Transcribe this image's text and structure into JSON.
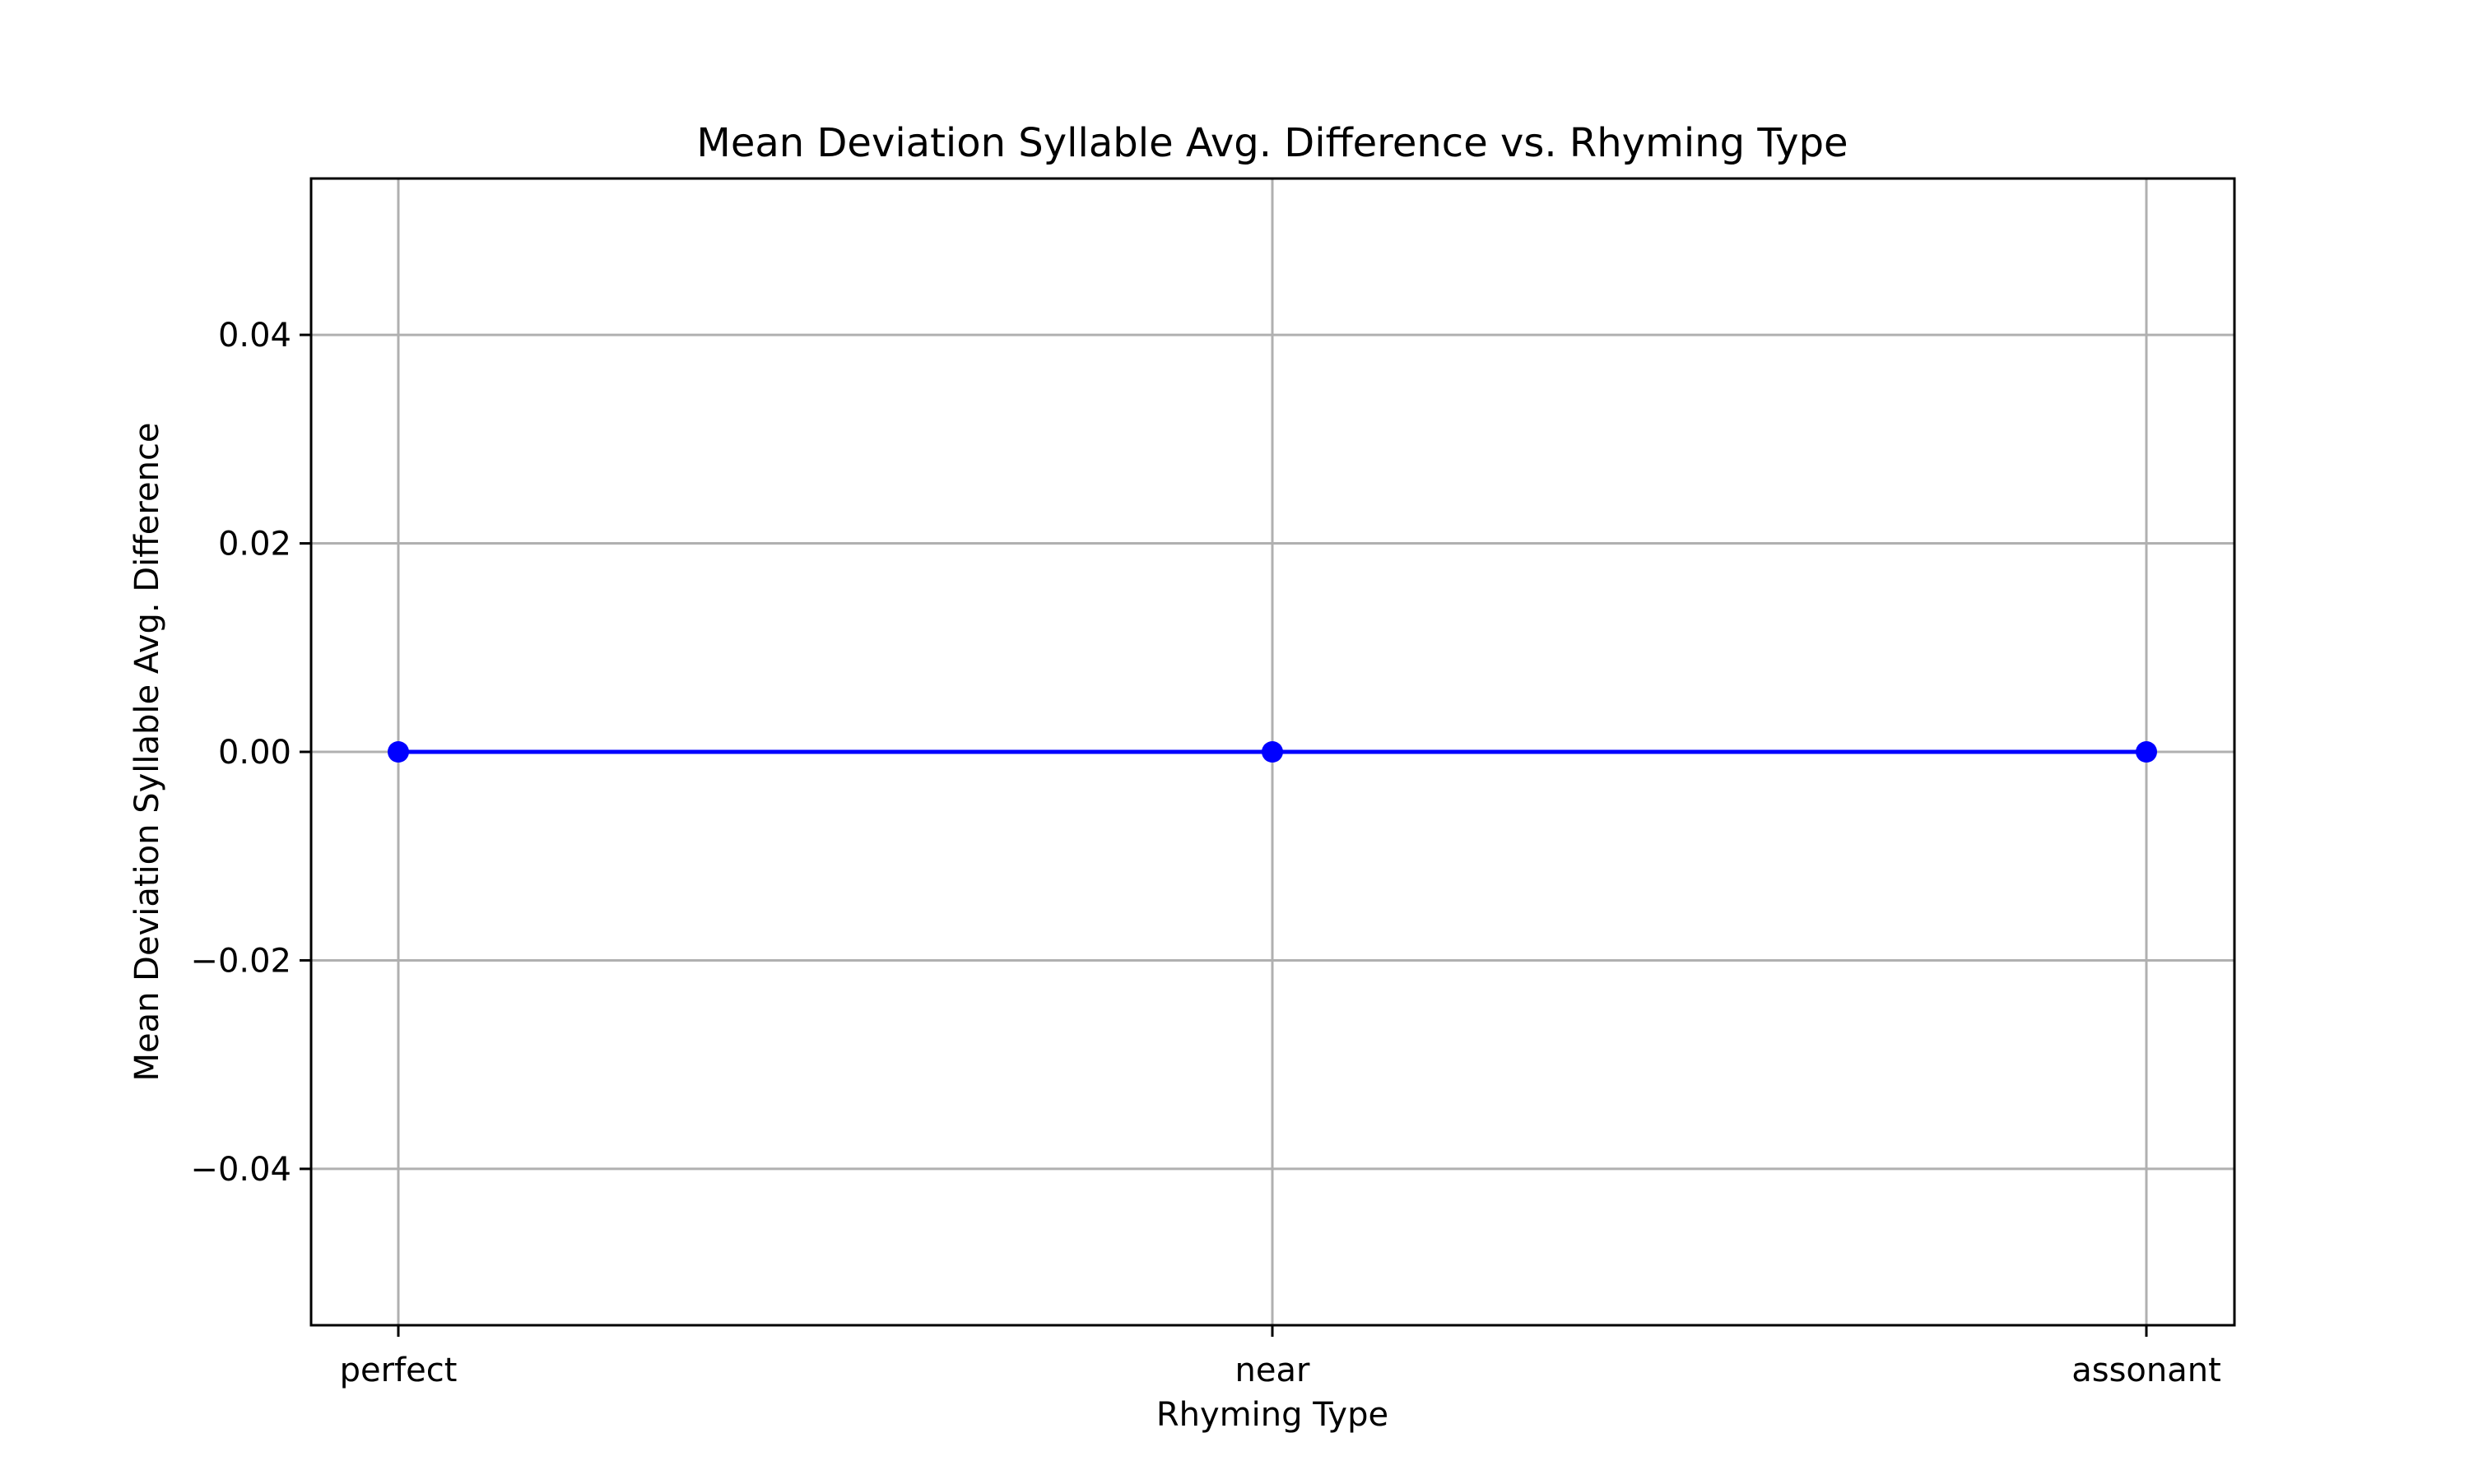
{
  "chart_data": {
    "type": "line",
    "title": "Mean Deviation Syllable Avg. Difference vs. Rhyming Type",
    "xlabel": "Rhyming Type",
    "ylabel": "Mean Deviation Syllable Avg. Difference",
    "categories": [
      "perfect",
      "near",
      "assonant"
    ],
    "series": [
      {
        "values": [
          0.0,
          0.0,
          0.0
        ],
        "color": "#0000ff",
        "marker": "circle"
      }
    ],
    "ylim": [
      -0.055,
      0.055
    ],
    "yticks": [
      -0.04,
      -0.02,
      0.0,
      0.02,
      0.04
    ],
    "ytick_labels": [
      "−0.04",
      "−0.02",
      "0.00",
      "0.02",
      "0.04"
    ],
    "grid": true,
    "legend": "none"
  },
  "colors": {
    "series": "#0000ff",
    "grid": "#b0b0b0",
    "axes": "#000000",
    "background": "#ffffff"
  }
}
